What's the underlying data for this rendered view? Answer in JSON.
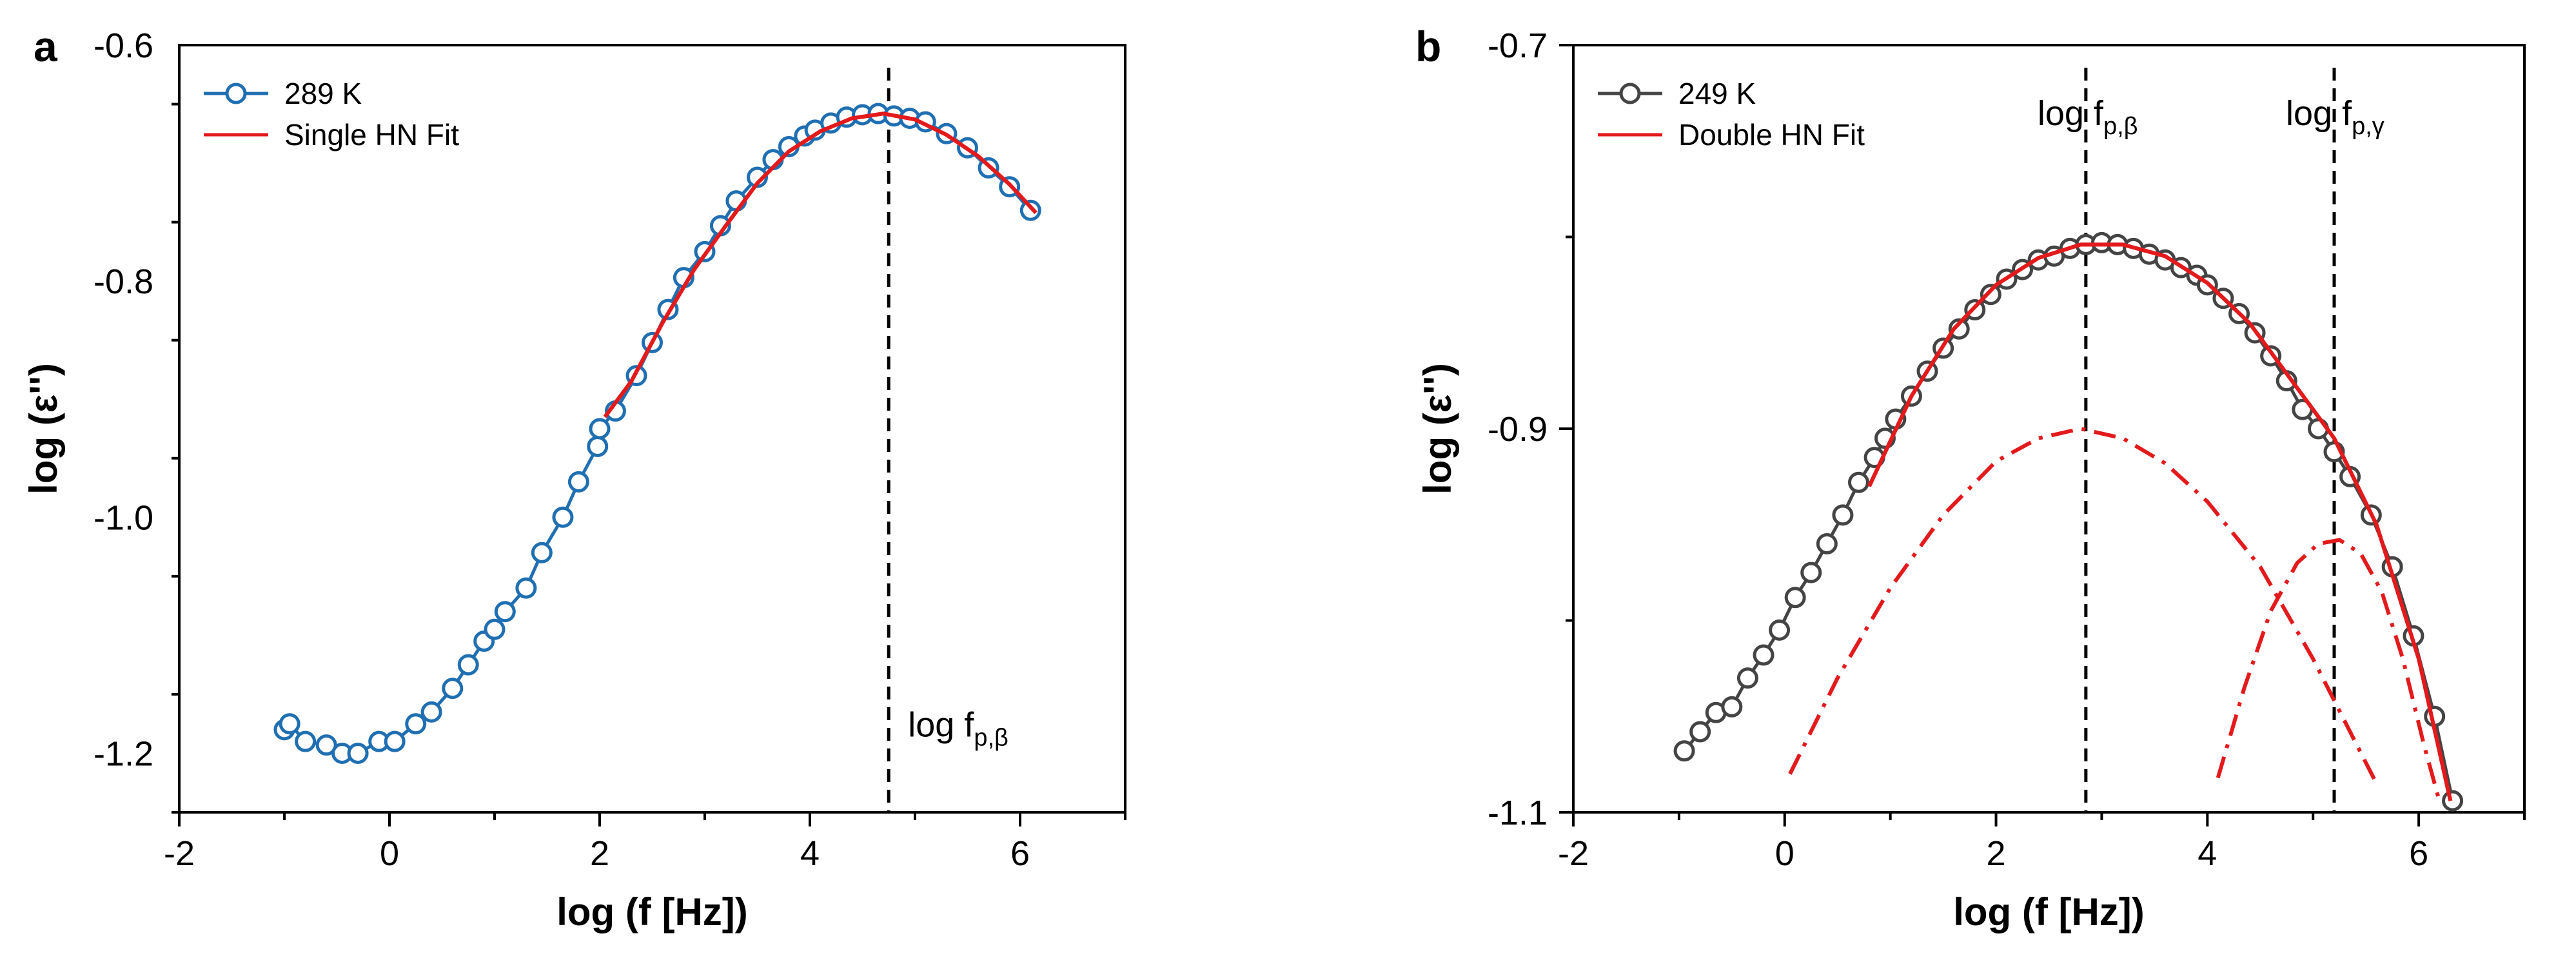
{
  "chart_data": [
    {
      "panel": "a",
      "type": "line",
      "xlabel": "log (f [Hz])",
      "ylabel": "log (ε'')",
      "xlim": [
        -2,
        7
      ],
      "ylim": [
        -1.25,
        -0.6
      ],
      "xticks": [
        -2,
        0,
        2,
        4,
        6
      ],
      "xtick_labels": [
        "-2",
        "0",
        "2",
        "4",
        "6"
      ],
      "yticks": [
        -1.2,
        -1.0,
        -0.8,
        -0.6
      ],
      "ytick_labels": [
        "-1.2",
        "-1.0",
        "-0.8",
        "-0.6"
      ],
      "legend_position": "top-left",
      "legend": [
        {
          "label": "289 K",
          "style": "line-circle",
          "color": "#1f6fb2"
        },
        {
          "label": "Single HN Fit",
          "style": "line",
          "color": "#e31a1c"
        }
      ],
      "annotations": [
        {
          "text": "log f",
          "sub": "p,β",
          "x": 4.75,
          "y": -1.175
        }
      ],
      "vlines": [
        {
          "x": 4.75,
          "style": "dashed"
        }
      ],
      "series": [
        {
          "name": "289 K",
          "color": "#1f6fb2",
          "marker": "open-circle",
          "x": [
            -1.0,
            -0.95,
            -0.8,
            -0.6,
            -0.45,
            -0.3,
            -0.1,
            0.05,
            0.25,
            0.4,
            0.6,
            0.75,
            0.9,
            1.0,
            1.1,
            1.3,
            1.45,
            1.65,
            1.8,
            1.98,
            2.0,
            2.15,
            2.35,
            2.5,
            2.65,
            2.8,
            3.0,
            3.15,
            3.3,
            3.5,
            3.65,
            3.8,
            3.95,
            4.05,
            4.2,
            4.35,
            4.5,
            4.65,
            4.8,
            4.95,
            5.1,
            5.3,
            5.5,
            5.7,
            5.9,
            6.1
          ],
          "y": [
            -1.18,
            -1.175,
            -1.19,
            -1.193,
            -1.2,
            -1.2,
            -1.19,
            -1.19,
            -1.175,
            -1.165,
            -1.145,
            -1.125,
            -1.105,
            -1.095,
            -1.08,
            -1.06,
            -1.03,
            -1.0,
            -0.97,
            -0.94,
            -0.925,
            -0.91,
            -0.88,
            -0.852,
            -0.824,
            -0.797,
            -0.775,
            -0.753,
            -0.732,
            -0.712,
            -0.697,
            -0.686,
            -0.677,
            -0.672,
            -0.666,
            -0.661,
            -0.659,
            -0.658,
            -0.66,
            -0.662,
            -0.665,
            -0.675,
            -0.687,
            -0.704,
            -0.72,
            -0.74
          ]
        },
        {
          "name": "Single HN Fit",
          "color": "#e31a1c",
          "style": "solid",
          "x": [
            2.05,
            2.3,
            2.6,
            2.9,
            3.2,
            3.5,
            3.8,
            4.1,
            4.4,
            4.7,
            5.0,
            5.3,
            5.6,
            5.9,
            6.15
          ],
          "y": [
            -0.915,
            -0.885,
            -0.835,
            -0.79,
            -0.753,
            -0.717,
            -0.69,
            -0.673,
            -0.662,
            -0.658,
            -0.663,
            -0.676,
            -0.694,
            -0.718,
            -0.742
          ]
        }
      ]
    },
    {
      "panel": "b",
      "type": "line",
      "xlabel": "log (f [Hz])",
      "ylabel": "log (ε'')",
      "xlim": [
        -2,
        7
      ],
      "ylim": [
        -1.1,
        -0.7
      ],
      "xticks": [
        -2,
        0,
        2,
        4,
        6
      ],
      "xtick_labels": [
        "-2",
        "0",
        "2",
        "4",
        "6"
      ],
      "yticks": [
        -1.1,
        -0.9,
        -0.7
      ],
      "ytick_labels": [
        "-1.1",
        "-0.9",
        "-0.7"
      ],
      "legend_position": "top-left",
      "legend": [
        {
          "label": "249 K",
          "style": "line-circle",
          "color": "#444444"
        },
        {
          "label": "Double HN Fit",
          "style": "line",
          "color": "#e31a1c"
        }
      ],
      "annotations": [
        {
          "text": "log f",
          "sub": "p,β",
          "x": 2.85,
          "y": -0.735
        },
        {
          "text": "log f",
          "sub": "p,γ",
          "x": 5.2,
          "y": -0.735
        }
      ],
      "vlines": [
        {
          "x": 2.85,
          "style": "dashed"
        },
        {
          "x": 5.2,
          "style": "dashed"
        }
      ],
      "series": [
        {
          "name": "249 K",
          "color": "#444444",
          "marker": "open-circle",
          "x": [
            -0.95,
            -0.8,
            -0.65,
            -0.5,
            -0.35,
            -0.2,
            -0.05,
            0.1,
            0.25,
            0.4,
            0.55,
            0.7,
            0.85,
            0.95,
            1.05,
            1.2,
            1.35,
            1.5,
            1.65,
            1.8,
            1.95,
            2.1,
            2.25,
            2.4,
            2.55,
            2.7,
            2.85,
            3.0,
            3.15,
            3.3,
            3.45,
            3.6,
            3.75,
            3.9,
            4.0,
            4.15,
            4.3,
            4.45,
            4.6,
            4.75,
            4.9,
            5.05,
            5.2,
            5.35,
            5.55,
            5.75,
            5.95,
            6.15,
            6.32
          ],
          "y": [
            -1.068,
            -1.058,
            -1.048,
            -1.045,
            -1.03,
            -1.018,
            -1.005,
            -0.988,
            -0.975,
            -0.96,
            -0.945,
            -0.928,
            -0.915,
            -0.905,
            -0.895,
            -0.883,
            -0.87,
            -0.858,
            -0.848,
            -0.838,
            -0.83,
            -0.822,
            -0.817,
            -0.812,
            -0.81,
            -0.806,
            -0.804,
            -0.803,
            -0.804,
            -0.806,
            -0.809,
            -0.812,
            -0.816,
            -0.82,
            -0.825,
            -0.832,
            -0.84,
            -0.85,
            -0.862,
            -0.875,
            -0.89,
            -0.9,
            -0.912,
            -0.925,
            -0.945,
            -0.972,
            -1.008,
            -1.05,
            -1.094
          ]
        },
        {
          "name": "Double HN Fit",
          "color": "#e31a1c",
          "style": "solid",
          "x": [
            0.8,
            1.2,
            1.6,
            2.0,
            2.4,
            2.8,
            3.2,
            3.6,
            4.0,
            4.4,
            4.8,
            5.2,
            5.6,
            6.0,
            6.3
          ],
          "y": [
            -0.93,
            -0.883,
            -0.848,
            -0.825,
            -0.811,
            -0.804,
            -0.804,
            -0.81,
            -0.824,
            -0.845,
            -0.875,
            -0.905,
            -0.95,
            -1.02,
            -1.094
          ]
        },
        {
          "name": "HN component β",
          "color": "#e31a1c",
          "style": "dashdot",
          "x": [
            0.05,
            0.5,
            1.0,
            1.5,
            2.0,
            2.4,
            2.8,
            3.2,
            3.6,
            4.0,
            4.5,
            5.0,
            5.35,
            5.6
          ],
          "y": [
            -1.08,
            -1.03,
            -0.983,
            -0.945,
            -0.917,
            -0.905,
            -0.9,
            -0.905,
            -0.918,
            -0.938,
            -0.972,
            -1.02,
            -1.058,
            -1.085
          ]
        },
        {
          "name": "HN component γ",
          "color": "#e31a1c",
          "style": "dashdot",
          "x": [
            4.1,
            4.35,
            4.6,
            4.85,
            5.05,
            5.25,
            5.45,
            5.65,
            5.85,
            6.05,
            6.2
          ],
          "y": [
            -1.082,
            -1.035,
            -0.995,
            -0.97,
            -0.96,
            -0.958,
            -0.965,
            -0.985,
            -1.02,
            -1.065,
            -1.095
          ]
        }
      ]
    }
  ]
}
